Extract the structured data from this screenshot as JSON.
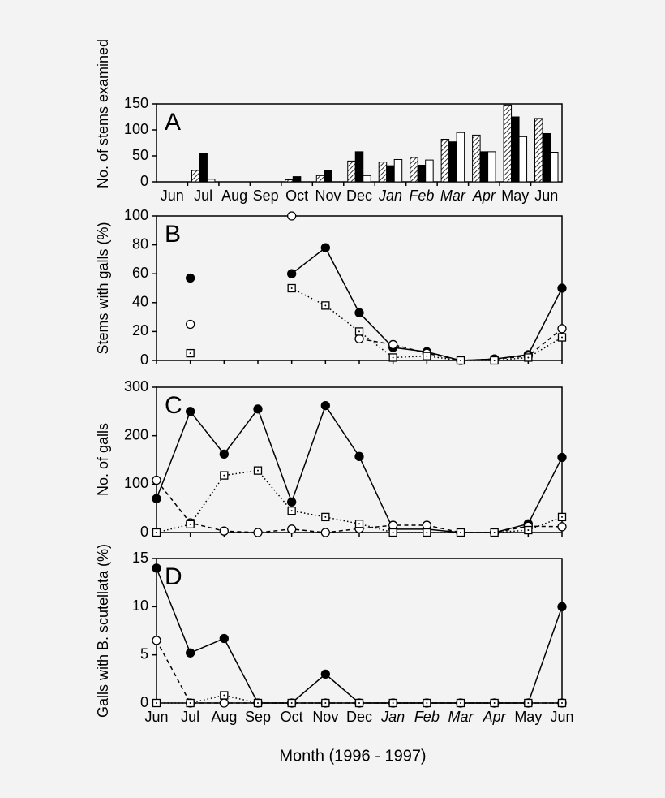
{
  "chart_data": [
    {
      "type": "bar",
      "annotation": "A",
      "ylabel": "No. of stems examined",
      "categories": [
        "Jun",
        "Jul",
        "Aug",
        "Sep",
        "Oct",
        "Nov",
        "Dec",
        "Jan",
        "Feb",
        "Mar",
        "Apr",
        "May",
        "Jun"
      ],
      "italic_categories": [
        7,
        8,
        9,
        10
      ],
      "ylim": [
        0,
        150
      ],
      "yticks": [
        0,
        50,
        100,
        150
      ],
      "series": [
        {
          "color": "#ffffff",
          "hatch": true,
          "values": [
            null,
            22,
            null,
            null,
            4,
            12,
            40,
            38,
            47,
            82,
            90,
            148,
            122
          ]
        },
        {
          "color": "#000000",
          "values": [
            null,
            55,
            null,
            null,
            10,
            22,
            58,
            31,
            32,
            77,
            58,
            125,
            93
          ]
        },
        {
          "color": "#ffffff",
          "values": [
            null,
            5,
            null,
            null,
            0,
            0,
            12,
            43,
            42,
            95,
            58,
            87,
            57
          ]
        }
      ]
    },
    {
      "type": "line",
      "annotation": "B",
      "ylabel": "Stems with galls (%)",
      "ylim": [
        0,
        100
      ],
      "yticks": [
        0,
        20,
        40,
        60,
        80,
        100
      ],
      "series": [
        {
          "color": "#000000",
          "marker": "filled-circle",
          "line_style": "solid",
          "values": [
            null,
            57,
            null,
            null,
            60,
            78,
            33,
            9,
            6,
            0,
            1,
            4,
            50
          ]
        },
        {
          "color": "#000000",
          "marker": "open-circle",
          "line_style": "dashed",
          "values": [
            null,
            25,
            null,
            null,
            100,
            null,
            15,
            11,
            5,
            0,
            1,
            3,
            22
          ]
        },
        {
          "color": "#000000",
          "marker": "dotted-square",
          "line_style": "dotted",
          "values": [
            null,
            5,
            null,
            null,
            50,
            38,
            20,
            2,
            3,
            0,
            0,
            2,
            16
          ]
        }
      ]
    },
    {
      "type": "line",
      "annotation": "C",
      "ylabel": "No. of galls",
      "ylim": [
        0,
        300
      ],
      "yticks": [
        0,
        100,
        200,
        300
      ],
      "series": [
        {
          "color": "#000000",
          "marker": "filled-circle",
          "line_style": "solid",
          "values": [
            70,
            250,
            162,
            255,
            63,
            262,
            157,
            7,
            7,
            0,
            0,
            18,
            155
          ]
        },
        {
          "color": "#000000",
          "marker": "open-circle",
          "line_style": "dashed",
          "values": [
            108,
            20,
            3,
            0,
            7,
            0,
            8,
            15,
            15,
            0,
            0,
            13,
            12
          ]
        },
        {
          "color": "#000000",
          "marker": "dotted-square",
          "line_style": "dotted",
          "values": [
            0,
            17,
            118,
            128,
            45,
            32,
            18,
            0,
            0,
            0,
            0,
            5,
            32
          ]
        }
      ]
    },
    {
      "type": "line",
      "annotation": "D",
      "ylabel": "Galls with B. scutellata (%)",
      "xlabel": "Month (1996 - 1997)",
      "categories": [
        "Jun",
        "Jul",
        "Aug",
        "Sep",
        "Oct",
        "Nov",
        "Dec",
        "Jan",
        "Feb",
        "Mar",
        "Apr",
        "May",
        "Jun"
      ],
      "italic_categories": [
        7,
        8,
        9,
        10
      ],
      "ylim": [
        0,
        15
      ],
      "yticks": [
        0,
        5,
        10,
        15
      ],
      "series": [
        {
          "color": "#000000",
          "marker": "filled-circle",
          "line_style": "solid",
          "values": [
            14,
            5.2,
            6.7,
            0,
            0,
            3,
            0,
            0,
            0,
            0,
            0,
            0,
            10
          ]
        },
        {
          "color": "#000000",
          "marker": "open-circle",
          "line_style": "dashed",
          "values": [
            6.5,
            0,
            0,
            0,
            0,
            0,
            0,
            0,
            0,
            0,
            0,
            0,
            0
          ]
        },
        {
          "color": "#000000",
          "marker": "dotted-square",
          "line_style": "dotted",
          "values": [
            0,
            0,
            0.8,
            0,
            0,
            0,
            0,
            0,
            0,
            0,
            0,
            0,
            0
          ]
        }
      ]
    }
  ]
}
